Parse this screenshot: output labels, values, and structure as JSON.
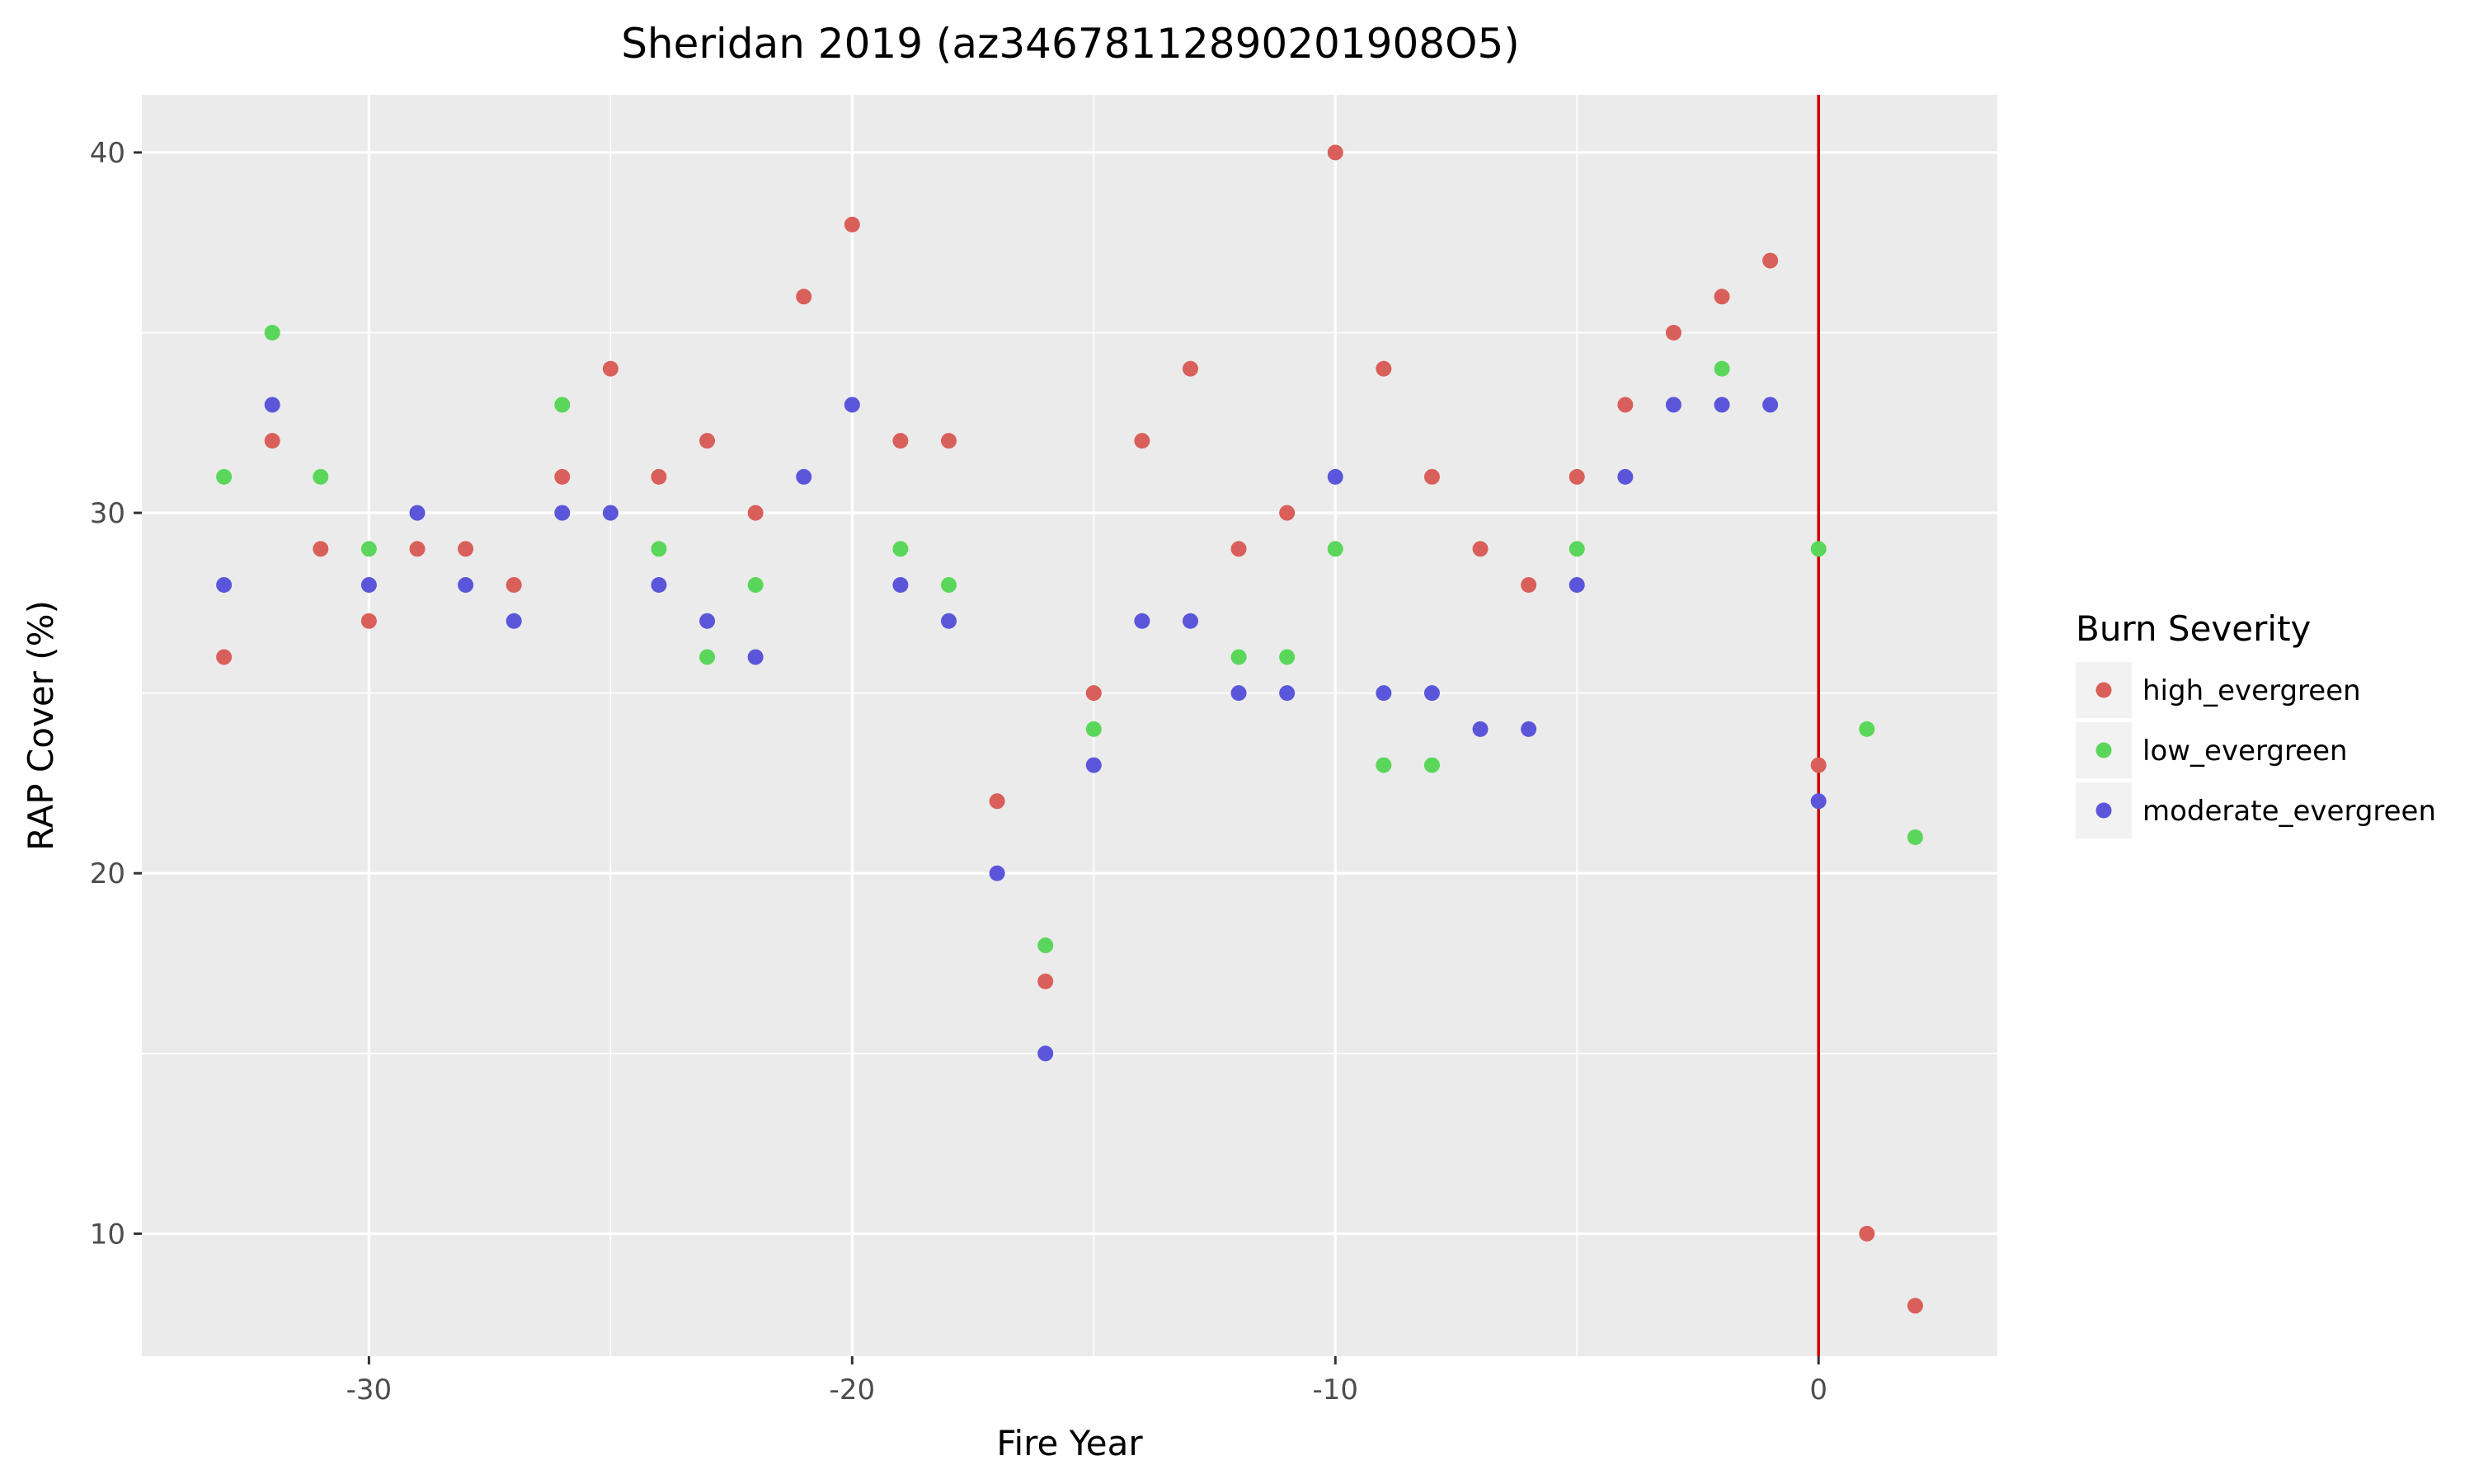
{
  "chart_data": {
    "type": "scatter",
    "title": "Sheridan 2019 (az34678112890201908O5)",
    "xlabel": "Fire Year",
    "ylabel": "RAP Cover (%)",
    "xlim": [
      -34.7,
      3.7
    ],
    "ylim": [
      6.6,
      41.6
    ],
    "x_ticks": [
      -30,
      -20,
      -10,
      0
    ],
    "x_tick_labels": [
      "-30",
      "-20",
      "-10",
      "0"
    ],
    "y_ticks": [
      10,
      20,
      30,
      40
    ],
    "y_tick_labels": [
      "10",
      "20",
      "30",
      "40"
    ],
    "grid": true,
    "reference_line": {
      "axis": "x",
      "value": 0,
      "color": "#cc0000"
    },
    "legend": {
      "title": "Burn Severity",
      "position": "right"
    },
    "series": [
      {
        "name": "high_evergreen",
        "color": "#d95f5a",
        "points": [
          [
            -33,
            26
          ],
          [
            -32,
            32
          ],
          [
            -31,
            29
          ],
          [
            -30,
            27
          ],
          [
            -29,
            29
          ],
          [
            -28,
            29
          ],
          [
            -27,
            28
          ],
          [
            -26,
            31
          ],
          [
            -25,
            34
          ],
          [
            -24,
            31
          ],
          [
            -23,
            32
          ],
          [
            -22,
            30
          ],
          [
            -21,
            36
          ],
          [
            -20,
            38
          ],
          [
            -19,
            32
          ],
          [
            -18,
            32
          ],
          [
            -17,
            22
          ],
          [
            -16,
            17
          ],
          [
            -15,
            25
          ],
          [
            -14,
            32
          ],
          [
            -13,
            34
          ],
          [
            -12,
            29
          ],
          [
            -11,
            30
          ],
          [
            -10,
            40
          ],
          [
            -9,
            34
          ],
          [
            -8,
            31
          ],
          [
            -7,
            29
          ],
          [
            -6,
            28
          ],
          [
            -5,
            31
          ],
          [
            -4,
            33
          ],
          [
            -3,
            35
          ],
          [
            -2,
            36
          ],
          [
            -1,
            37
          ],
          [
            0,
            23
          ],
          [
            1,
            10
          ],
          [
            2,
            8
          ]
        ]
      },
      {
        "name": "low_evergreen",
        "color": "#5ad75a",
        "points": [
          [
            -33,
            31
          ],
          [
            -32,
            35
          ],
          [
            -31,
            31
          ],
          [
            -30,
            29
          ],
          [
            -26,
            33
          ],
          [
            -24,
            29
          ],
          [
            -23,
            26
          ],
          [
            -22,
            28
          ],
          [
            -19,
            29
          ],
          [
            -18,
            28
          ],
          [
            -16,
            18
          ],
          [
            -15,
            24
          ],
          [
            -12,
            26
          ],
          [
            -11,
            26
          ],
          [
            -10,
            29
          ],
          [
            -9,
            23
          ],
          [
            -8,
            23
          ],
          [
            -5,
            29
          ],
          [
            -2,
            34
          ],
          [
            0,
            29
          ],
          [
            1,
            24
          ],
          [
            2,
            21
          ]
        ]
      },
      {
        "name": "moderate_evergreen",
        "color": "#5b56d9",
        "points": [
          [
            -33,
            28
          ],
          [
            -32,
            33
          ],
          [
            -30,
            28
          ],
          [
            -29,
            30
          ],
          [
            -28,
            28
          ],
          [
            -27,
            27
          ],
          [
            -26,
            30
          ],
          [
            -25,
            30
          ],
          [
            -24,
            28
          ],
          [
            -23,
            27
          ],
          [
            -22,
            26
          ],
          [
            -21,
            31
          ],
          [
            -20,
            33
          ],
          [
            -19,
            28
          ],
          [
            -18,
            27
          ],
          [
            -17,
            20
          ],
          [
            -16,
            15
          ],
          [
            -15,
            23
          ],
          [
            -14,
            27
          ],
          [
            -13,
            27
          ],
          [
            -12,
            25
          ],
          [
            -11,
            25
          ],
          [
            -10,
            31
          ],
          [
            -9,
            25
          ],
          [
            -8,
            25
          ],
          [
            -7,
            24
          ],
          [
            -6,
            24
          ],
          [
            -5,
            28
          ],
          [
            -4,
            31
          ],
          [
            -3,
            33
          ],
          [
            -2,
            33
          ],
          [
            -1,
            33
          ],
          [
            0,
            22
          ]
        ]
      }
    ]
  }
}
